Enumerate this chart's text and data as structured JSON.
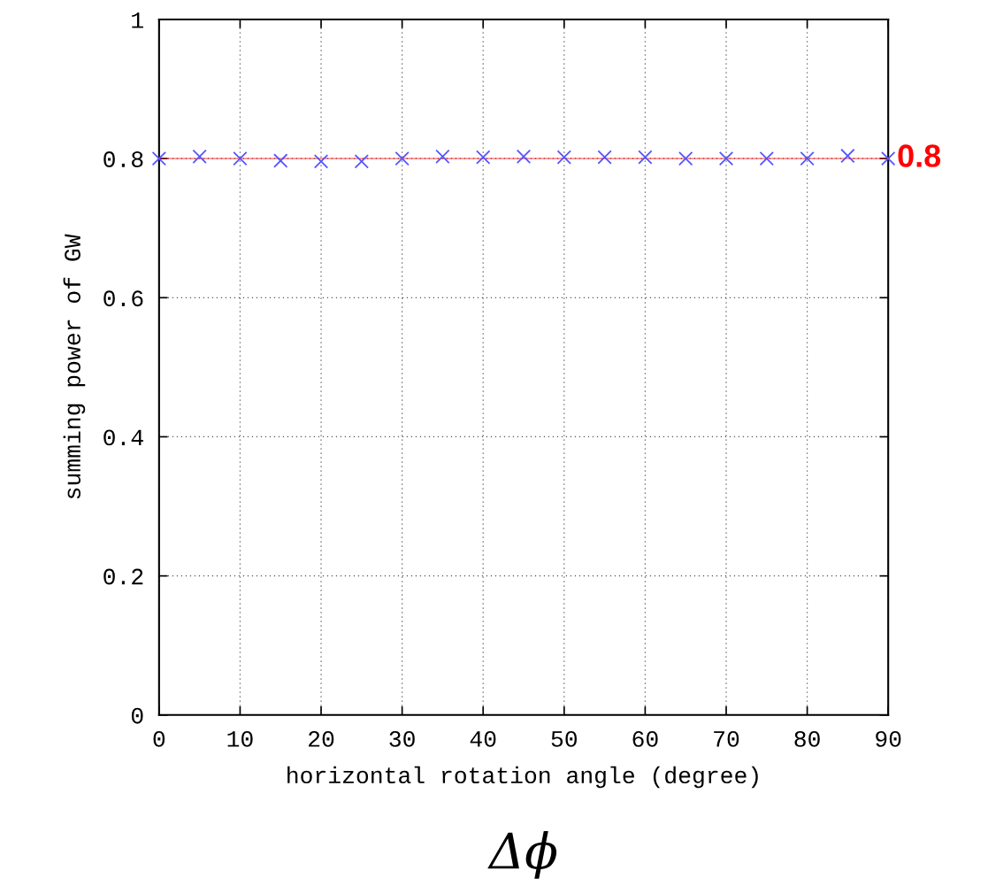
{
  "chart_data": {
    "type": "scatter",
    "xlabel": "horizontal rotation angle (degree)",
    "ylabel": "summing power of GW",
    "x": [
      0,
      5,
      10,
      15,
      20,
      25,
      30,
      35,
      40,
      45,
      50,
      55,
      60,
      65,
      70,
      75,
      80,
      85,
      90
    ],
    "series": [
      {
        "color": "#5555ff",
        "values": [
          0.8,
          0.803,
          0.8,
          0.797,
          0.796,
          0.796,
          0.8,
          0.803,
          0.802,
          0.803,
          0.802,
          0.802,
          0.802,
          0.8,
          0.8,
          0.8,
          0.8,
          0.804,
          0.8
        ]
      }
    ],
    "marker": "cross",
    "xlim": [
      0,
      90
    ],
    "ylim": [
      0,
      1
    ],
    "xticks": [
      0,
      10,
      20,
      30,
      40,
      50,
      60,
      70,
      80,
      90
    ],
    "yticks": [
      0,
      0.2,
      0.4,
      0.6,
      0.8,
      1
    ],
    "grid": true,
    "ref_lines": [
      {
        "axis": "y",
        "value": 0.8,
        "label": "0.8",
        "color": "#ff0000"
      }
    ],
    "annotations": [
      "Δϕ"
    ]
  }
}
